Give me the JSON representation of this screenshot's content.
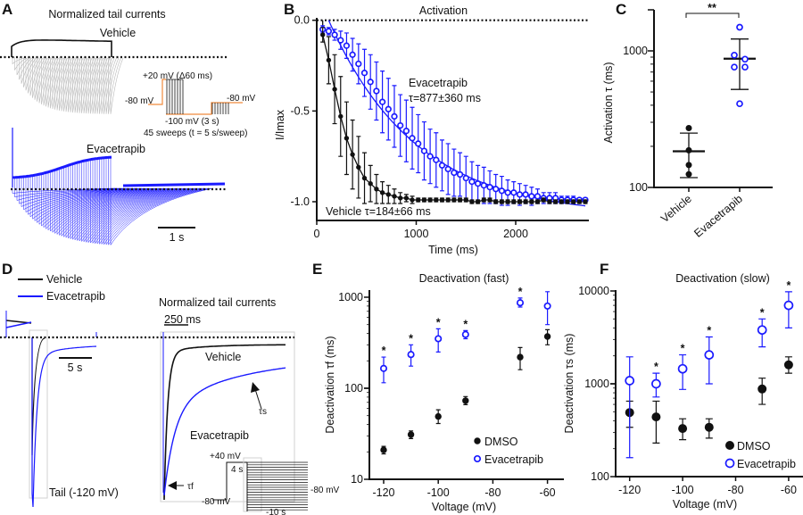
{
  "colors": {
    "vehicle": "#111111",
    "evacetrapib": "#1a1aff",
    "vehicle_sweeps": "#b8b8b8",
    "protocol_orange": "#f08a3c",
    "box_gray": "#d0d0d0"
  },
  "panel_a": {
    "label": "A",
    "title": "Normalized tail currents",
    "vehicle_label": "Vehicle",
    "evacetrapib_label": "Evacetrapib",
    "protocol": {
      "step_label": "+20 mV (Δ60 ms)",
      "holding_left": "-80 mV",
      "holding_right": "-80 mV",
      "tail_label": "-100 mV (3 s)",
      "sweeps_label": "45 sweeps (t = 5 s/sweep)"
    },
    "scale_bar": "1 s"
  },
  "panel_d": {
    "label": "D",
    "legend": [
      {
        "name": "Vehicle",
        "color": "#111111"
      },
      {
        "name": "Evacetrapib",
        "color": "#1a1aff"
      }
    ],
    "scale_bar_left": "5 s",
    "tail_label": "Tail (-120 mV)",
    "right_title": "Normalized tail currents",
    "scale_bar_right": "250 ms",
    "vehicle_label": "Vehicle",
    "evacetrapib_label": "Evacetrapib",
    "tau_s": "τs",
    "tau_f": "τf",
    "protocol": {
      "step": "+40 mV",
      "duration": "4 s",
      "holding": "-80 mV",
      "tail_holding": "-80 mV",
      "tail_step": "-10 s"
    }
  },
  "chart_data": [
    {
      "panel": "B",
      "type": "line",
      "title": "Activation",
      "xlabel": "Time (ms)",
      "ylabel": "I/Imax",
      "xlim": [
        0,
        2750
      ],
      "ylim": [
        -1.1,
        0.0
      ],
      "xticks": [
        "0",
        "1000",
        "2000"
      ],
      "yticks": [
        "0.0",
        "-0.5",
        "-1.0"
      ],
      "annotations": {
        "evacetrapib": "Evacetrapib",
        "evacetrapib_tau": "τ=877±360 ms",
        "vehicle": "Vehicle  τ=184±66 ms"
      },
      "series": [
        {
          "name": "Vehicle",
          "color": "#111111",
          "marker": "filled",
          "x": [
            60,
            120,
            180,
            240,
            300,
            360,
            420,
            480,
            540,
            600,
            660,
            720,
            780,
            840,
            900,
            960,
            1020,
            1080,
            1140,
            1200,
            1260,
            1320,
            1380,
            1440,
            1500,
            1560,
            1620,
            1680,
            1740,
            1800,
            1860,
            1920,
            1980,
            2040,
            2100,
            2160,
            2220,
            2280,
            2340,
            2400,
            2460,
            2520,
            2580,
            2640,
            2700
          ],
          "y": [
            -0.08,
            -0.22,
            -0.38,
            -0.53,
            -0.65,
            -0.74,
            -0.81,
            -0.87,
            -0.9,
            -0.93,
            -0.95,
            -0.96,
            -0.97,
            -0.98,
            -0.98,
            -0.99,
            -0.99,
            -0.99,
            -0.99,
            -0.99,
            -0.99,
            -0.99,
            -0.99,
            -0.99,
            -0.99,
            -1.0,
            -1.0,
            -0.99,
            -0.99,
            -1.0,
            -1.0,
            -1.0,
            -1.0,
            -1.0,
            -1.0,
            -1.0,
            -1.0,
            -0.99,
            -1.0,
            -1.0,
            -1.0,
            -1.0,
            -1.0,
            -1.0,
            -1.0
          ],
          "sd": [
            0.04,
            0.13,
            0.19,
            0.22,
            0.2,
            0.19,
            0.17,
            0.14,
            0.1,
            0.08,
            0.06,
            0.05,
            0.04,
            0.03,
            0.02,
            0.02,
            0.01,
            0.01,
            0.01,
            0.01,
            0.01,
            0.01,
            0.01,
            0.01,
            0.01,
            0.01,
            0.01,
            0.01,
            0.01,
            0.01,
            0.01,
            0.01,
            0.01,
            0.01,
            0.01,
            0.01,
            0.01,
            0.01,
            0.01,
            0.01,
            0.01,
            0.01,
            0.01,
            0.01,
            0.01
          ]
        },
        {
          "name": "Evacetrapib",
          "color": "#1a1aff",
          "marker": "open",
          "x": [
            60,
            120,
            180,
            240,
            300,
            360,
            420,
            480,
            540,
            600,
            660,
            720,
            780,
            840,
            900,
            960,
            1020,
            1080,
            1140,
            1200,
            1260,
            1320,
            1380,
            1440,
            1500,
            1560,
            1620,
            1680,
            1740,
            1800,
            1860,
            1920,
            1980,
            2040,
            2100,
            2160,
            2220,
            2280,
            2340,
            2400,
            2460,
            2520,
            2580,
            2640,
            2700
          ],
          "y": [
            -0.05,
            -0.06,
            -0.08,
            -0.11,
            -0.14,
            -0.19,
            -0.24,
            -0.29,
            -0.34,
            -0.39,
            -0.45,
            -0.49,
            -0.53,
            -0.58,
            -0.61,
            -0.65,
            -0.68,
            -0.72,
            -0.75,
            -0.77,
            -0.8,
            -0.82,
            -0.84,
            -0.85,
            -0.87,
            -0.89,
            -0.9,
            -0.91,
            -0.92,
            -0.93,
            -0.94,
            -0.95,
            -0.95,
            -0.96,
            -0.96,
            -0.97,
            -0.97,
            -0.98,
            -0.98,
            -0.98,
            -0.99,
            -0.99,
            -0.99,
            -0.99,
            -0.99
          ],
          "sd": [
            0.02,
            0.02,
            0.03,
            0.05,
            0.07,
            0.09,
            0.11,
            0.13,
            0.15,
            0.16,
            0.17,
            0.17,
            0.17,
            0.17,
            0.17,
            0.17,
            0.16,
            0.16,
            0.15,
            0.15,
            0.14,
            0.14,
            0.13,
            0.12,
            0.12,
            0.11,
            0.1,
            0.1,
            0.09,
            0.08,
            0.08,
            0.07,
            0.06,
            0.06,
            0.05,
            0.05,
            0.04,
            0.03,
            0.03,
            0.03,
            0.02,
            0.02,
            0.02,
            0.01,
            0.01
          ]
        }
      ]
    },
    {
      "panel": "C",
      "type": "scatter",
      "title": "",
      "ylabel": "Activation τ (ms)",
      "yscale": "log",
      "ylim": [
        100,
        2000
      ],
      "yticks": [
        "100",
        "1000"
      ],
      "categories": [
        "Vehicle",
        "Evacetrapib"
      ],
      "significance": "**",
      "groups": [
        {
          "name": "Vehicle",
          "values": [
            272,
            187,
            146,
            125
          ],
          "mean": 184,
          "sd_range": [
            118,
            250
          ],
          "color": "#111111",
          "marker": "filled"
        },
        {
          "name": "Evacetrapib",
          "values": [
            1490,
            930,
            870,
            760,
            760,
            410
          ],
          "mean": 877,
          "sd_range": [
            522,
            1222
          ],
          "color": "#1a1aff",
          "marker": "open"
        }
      ]
    },
    {
      "panel": "E",
      "type": "scatter",
      "title": "Deactivation (fast)",
      "xlabel": "Voltage (mV)",
      "ylabel": "Deactivation τf (ms)",
      "yscale": "log",
      "xlim": [
        -125,
        -57
      ],
      "ylim": [
        10,
        1000
      ],
      "xticks": [
        "-120",
        "-100",
        "-80",
        "-60"
      ],
      "yticks": [
        "10",
        "100",
        "1000"
      ],
      "legend": "lower-right",
      "significant_x": [
        -120,
        -110,
        -100,
        -90,
        -70
      ],
      "significance_mark": "*",
      "series": [
        {
          "name": "DMSO",
          "color": "#111111",
          "marker": "filled",
          "x": [
            -120,
            -110,
            -100,
            -90,
            -70,
            -60
          ],
          "y": [
            21,
            31,
            49,
            73,
            220,
            370
          ],
          "lo": [
            19,
            28,
            41,
            66,
            160,
            300
          ],
          "hi": [
            23,
            34,
            58,
            81,
            280,
            440
          ]
        },
        {
          "name": "Evacetrapib",
          "color": "#1a1aff",
          "marker": "open",
          "x": [
            -120,
            -110,
            -100,
            -90,
            -70,
            -60
          ],
          "y": [
            165,
            235,
            350,
            390,
            870,
            800
          ],
          "lo": [
            115,
            175,
            250,
            350,
            780,
            500
          ],
          "hi": [
            220,
            300,
            450,
            430,
            980,
            1150
          ]
        }
      ]
    },
    {
      "panel": "F",
      "type": "scatter",
      "title": "Deactivation (slow)",
      "xlabel": "Voltage (mV)",
      "ylabel": "Deactivation τs (ms)",
      "yscale": "log",
      "xlim": [
        -127,
        -57
      ],
      "ylim": [
        100,
        10000
      ],
      "xticks": [
        "-120",
        "-100",
        "-80",
        "-60"
      ],
      "yticks": [
        "100",
        "1000",
        "10000"
      ],
      "legend": "lower-right",
      "significant_x": [
        -110,
        -100,
        -90,
        -70,
        -60
      ],
      "significance_mark": "*",
      "series": [
        {
          "name": "DMSO",
          "color": "#111111",
          "marker": "filled",
          "x": [
            -120,
            -110,
            -100,
            -90,
            -70,
            -60
          ],
          "y": [
            490,
            440,
            330,
            340,
            880,
            1600
          ],
          "lo": [
            340,
            230,
            250,
            260,
            600,
            1300
          ],
          "hi": [
            650,
            650,
            420,
            420,
            1150,
            1950
          ]
        },
        {
          "name": "Evacetrapib",
          "color": "#1a1aff",
          "marker": "open",
          "x": [
            -120,
            -110,
            -100,
            -90,
            -70,
            -60
          ],
          "y": [
            1080,
            1000,
            1450,
            2050,
            3800,
            7000
          ],
          "lo": [
            160,
            720,
            870,
            1000,
            2500,
            4000
          ],
          "hi": [
            1950,
            1300,
            2050,
            3200,
            5000,
            9800
          ]
        }
      ]
    }
  ]
}
